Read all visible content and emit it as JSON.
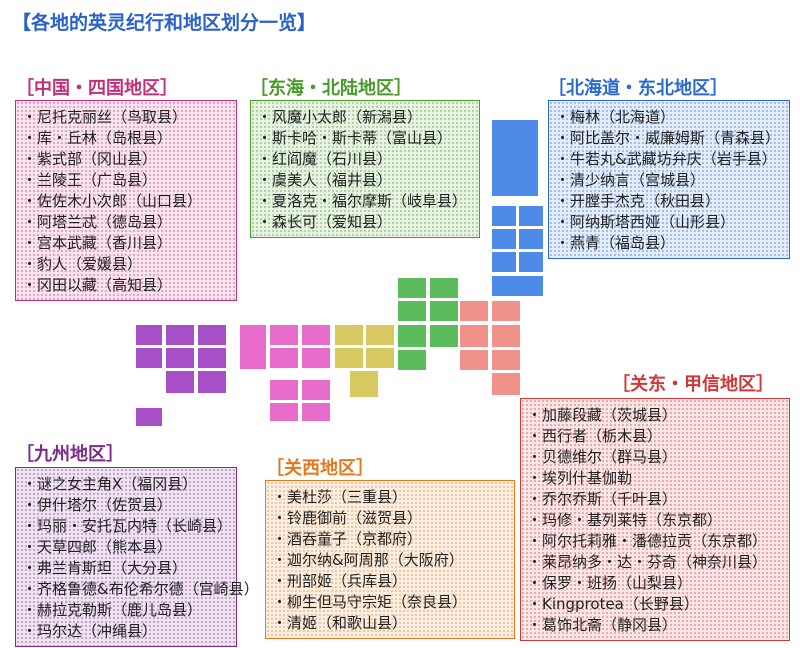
{
  "title": "【各地的英灵纪行和地区划分一览】",
  "regions": [
    {
      "heading": "［中国・四国地区］",
      "items": [
        "・尼托克丽丝（鸟取县）",
        "・库・丘林（岛根县）",
        "・紫式部（冈山县）",
        "・兰陵王（广岛县）",
        "・佐佐木小次郎（山口县）",
        "・阿塔兰忒（德岛县）",
        "・宫本武藏（香川县）",
        "・豹人（爱媛县）",
        "・冈田以藏（高知县）"
      ]
    },
    {
      "heading": "［东海・北陆地区］",
      "items": [
        "・风魔小太郎（新潟县）",
        "・斯卡哈・斯卡蒂（富山县）",
        "・红阎魔（石川县）",
        "・虞美人（福井县）",
        "・夏洛克・福尔摩斯（岐阜县）",
        "・森长可（爱知县）"
      ]
    },
    {
      "heading": "［北海道・东北地区］",
      "items": [
        "・梅林（北海道）",
        "・阿比盖尔・威廉姆斯（青森县）",
        "・牛若丸&武藏坊弁庆（岩手县）",
        "・清少纳言（宫城县）",
        "・开膛手杰克（秋田县）",
        "・阿纳斯塔西娅（山形县）",
        "・燕青（福岛县）"
      ]
    },
    {
      "heading": "［关东・甲信地区］",
      "items": [
        "・加藤段藏（茨城县）",
        "・西行者（栃木县）",
        "・贝德维尔（群马县）",
        "・埃列什基伽勒",
        "・乔尔乔斯（千叶县）",
        "・玛修・基列莱特（东京都）",
        "・阿尔托莉雅・潘德拉贡（东京都）",
        "・莱昂纳多・达・芬奇（神奈川县）",
        "・保罗・班扬（山梨县）",
        "・Kingprotea（长野县）",
        "・葛饰北斋（静冈县）"
      ]
    },
    {
      "heading": "［九州地区］",
      "items": [
        "・谜之女主角X（福冈县）",
        "・伊什塔尔（佐贺县）",
        "・玛丽・安托瓦内特（长崎县）",
        "・天草四郎（熊本县）",
        "・弗兰肯斯坦（大分县）",
        "・齐格鲁德&布伦希尔德（宫崎县）",
        "・赫拉克勒斯（鹿儿岛县）",
        "・玛尔达（冲绳县）"
      ]
    },
    {
      "heading": "［关西地区］",
      "items": [
        "・美杜莎（三重县）",
        "・铃鹿御前（滋贺县）",
        "・酒吞童子（京都府）",
        "・迦尔纳&阿周那（大阪府）",
        "・刑部姬（兵库县）",
        "・柳生但马守宗矩（奈良县）",
        "・清姬（和歌山县）"
      ]
    }
  ]
}
